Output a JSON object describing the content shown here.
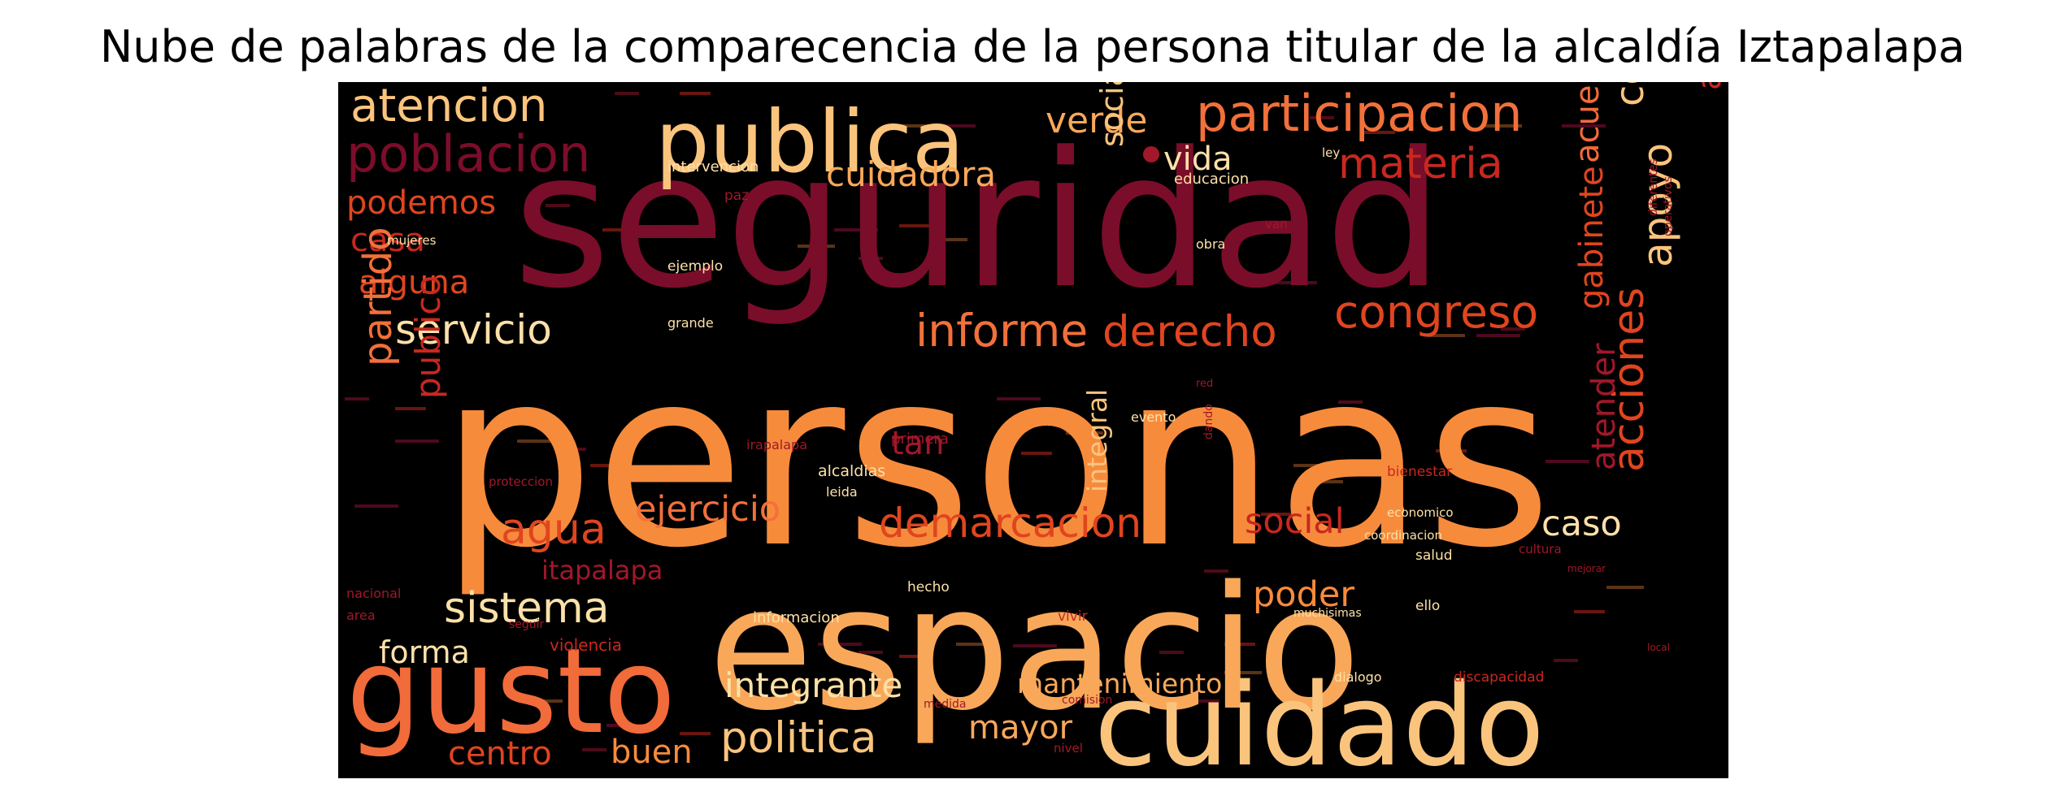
{
  "figure": {
    "title": "Nube de palabras de la comparecencia de la persona titular de la alcaldía Iztapalapa"
  },
  "colors": {
    "background": "#000000",
    "palette": [
      "#7a0d2a",
      "#a2172a",
      "#c8281f",
      "#e0451f",
      "#f2703a",
      "#f78b3c",
      "#f9a85a",
      "#fbc47d",
      "#fde1a8"
    ]
  },
  "words": [
    {
      "text": "personas",
      "color": "#f78b3c"
    },
    {
      "text": "seguridad",
      "color": "#7a0d2a"
    },
    {
      "text": "espacio",
      "color": "#f9a85a"
    },
    {
      "text": "cuidado",
      "color": "#fbc47d"
    },
    {
      "text": "gusto",
      "color": "#f26b3a"
    },
    {
      "text": "publica",
      "color": "#fbc47d"
    },
    {
      "text": "participacion",
      "color": "#f2703a"
    },
    {
      "text": "poblacion",
      "color": "#7a0d2a"
    },
    {
      "text": "atencion",
      "color": "#fbc47d"
    },
    {
      "text": "verde",
      "color": "#f9a85a"
    },
    {
      "text": "materia",
      "color": "#c8281f"
    },
    {
      "text": "vida",
      "color": "#fde1a8"
    },
    {
      "text": "cuidadora",
      "color": "#f9a85a"
    },
    {
      "text": "podemos",
      "color": "#e0451f"
    },
    {
      "text": "casa",
      "color": "#c8281f"
    },
    {
      "text": "alguna",
      "color": "#e0451f"
    },
    {
      "text": "servicio",
      "color": "#fde1a8"
    },
    {
      "text": "informe",
      "color": "#f2703a"
    },
    {
      "text": "derecho",
      "color": "#e0451f"
    },
    {
      "text": "congreso",
      "color": "#e0451f"
    },
    {
      "text": "consulta",
      "color": "#fbc47d"
    },
    {
      "text": "acuerdo",
      "color": "#f26b3a"
    },
    {
      "text": "apoyo",
      "color": "#fbc47d"
    },
    {
      "text": "administracion",
      "color": "#c8281f"
    },
    {
      "text": "gabinete",
      "color": "#e0451f"
    },
    {
      "text": "acciones",
      "color": "#e0451f"
    },
    {
      "text": "atender",
      "color": "#a2172a"
    },
    {
      "text": "sociales",
      "color": "#fbc47d"
    },
    {
      "text": "partido",
      "color": "#f2703a"
    },
    {
      "text": "publico",
      "color": "#c8281f"
    },
    {
      "text": "agua",
      "color": "#e0451f"
    },
    {
      "text": "ejercicio",
      "color": "#f2703a"
    },
    {
      "text": "demarcacion",
      "color": "#e0451f"
    },
    {
      "text": "social",
      "color": "#c8281f"
    },
    {
      "text": "caso",
      "color": "#fde1a8"
    },
    {
      "text": "sistema",
      "color": "#fde1a8"
    },
    {
      "text": "itapalapa",
      "color": "#a2172a"
    },
    {
      "text": "forma",
      "color": "#fde1a8"
    },
    {
      "text": "integrante",
      "color": "#fde1a8"
    },
    {
      "text": "politica",
      "color": "#fbc47d"
    },
    {
      "text": "mantenimiento",
      "color": "#f9a85a"
    },
    {
      "text": "mayor",
      "color": "#f9a85a"
    },
    {
      "text": "centro",
      "color": "#e0451f"
    },
    {
      "text": "buen",
      "color": "#f78b3c"
    },
    {
      "text": "poder",
      "color": "#f78b3c"
    },
    {
      "text": "tan",
      "color": "#a2172a"
    },
    {
      "text": "integral",
      "color": "#fbc47d"
    },
    {
      "text": "intervencion",
      "color": "#fde1a8"
    },
    {
      "text": "educacion",
      "color": "#fde1a8"
    },
    {
      "text": "mujeres",
      "color": "#fde1a8"
    },
    {
      "text": "ejemplo",
      "color": "#fde1a8"
    },
    {
      "text": "grande",
      "color": "#fde1a8"
    },
    {
      "text": "bienestar",
      "color": "#c8281f"
    },
    {
      "text": "alcaldias",
      "color": "#fde1a8"
    },
    {
      "text": "leida",
      "color": "#fde1a8"
    },
    {
      "text": "economico",
      "color": "#fde1a8"
    },
    {
      "text": "coordinacion",
      "color": "#fde1a8"
    },
    {
      "text": "salud",
      "color": "#fde1a8"
    },
    {
      "text": "ello",
      "color": "#fde1a8"
    },
    {
      "text": "muchisimas",
      "color": "#fde1a8"
    },
    {
      "text": "dialogo",
      "color": "#fde1a8"
    },
    {
      "text": "discapacidad",
      "color": "#c8281f"
    },
    {
      "text": "informacion",
      "color": "#fde1a8"
    },
    {
      "text": "hecho",
      "color": "#fde1a8"
    },
    {
      "text": "vivir",
      "color": "#c8281f"
    },
    {
      "text": "violencia",
      "color": "#c8281f"
    },
    {
      "text": "nacional",
      "color": "#a2172a"
    },
    {
      "text": "area",
      "color": "#a2172a"
    },
    {
      "text": "primera",
      "color": "#a2172a"
    },
    {
      "text": "irapalapa",
      "color": "#a2172a"
    },
    {
      "text": "proteccion",
      "color": "#a2172a"
    },
    {
      "text": "evento",
      "color": "#fde1a8"
    },
    {
      "text": "cultura",
      "color": "#a2172a"
    },
    {
      "text": "medida",
      "color": "#a2172a"
    },
    {
      "text": "comision",
      "color": "#a2172a"
    },
    {
      "text": "nivel",
      "color": "#a2172a"
    },
    {
      "text": "ley",
      "color": "#fde1a8"
    },
    {
      "text": "van",
      "color": "#a2172a"
    },
    {
      "text": "obra",
      "color": "#fde1a8"
    },
    {
      "text": "paz",
      "color": "#a2172a"
    },
    {
      "text": "seguir",
      "color": "#a2172a"
    },
    {
      "text": "mejorar",
      "color": "#a2172a"
    },
    {
      "text": "local",
      "color": "#a2172a"
    },
    {
      "text": "dando",
      "color": "#a2172a"
    },
    {
      "text": "red",
      "color": "#a2172a"
    },
    {
      "text": "operativos",
      "color": "#a2172a"
    },
    {
      "text": "diferentes",
      "color": "#a2172a"
    }
  ]
}
